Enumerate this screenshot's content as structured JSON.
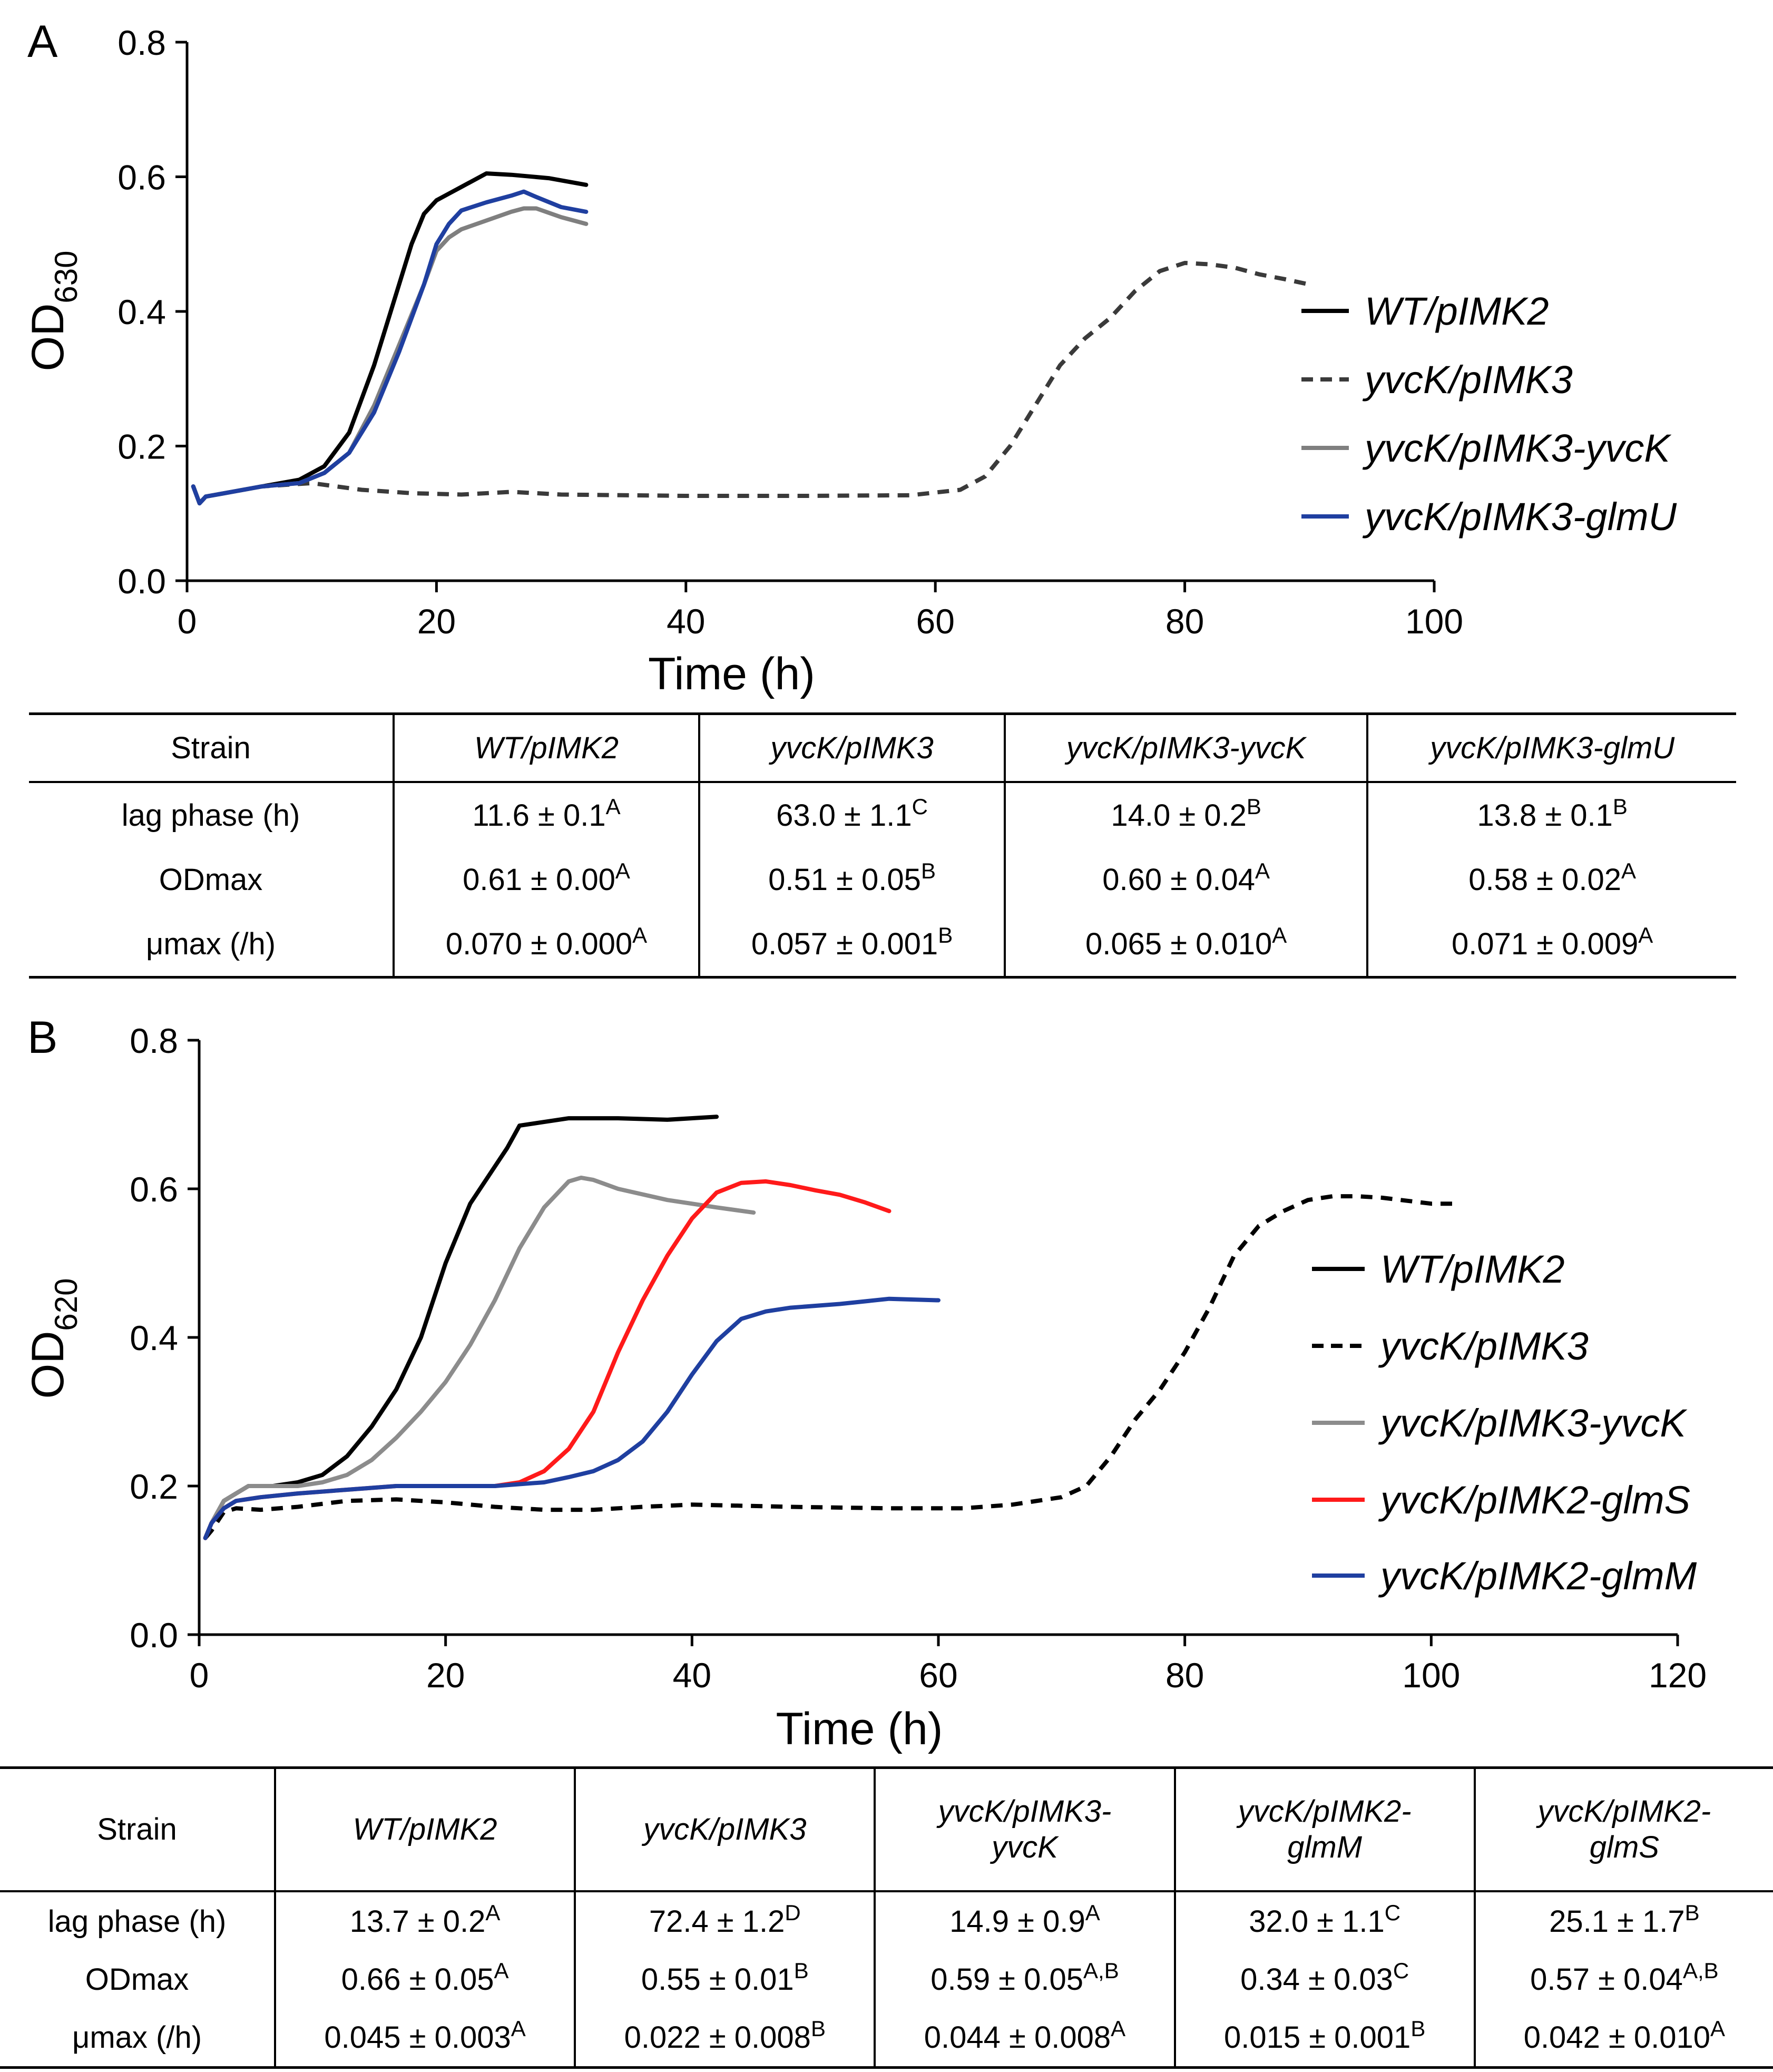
{
  "chart_data": [
    {
      "panel": "A",
      "type": "line",
      "title": "",
      "xlabel": "Time (h)",
      "ylabel_main": "OD",
      "ylabel_sub": "630",
      "xlim": [
        0,
        100
      ],
      "ylim": [
        0,
        0.8
      ],
      "xticks": [
        0,
        20,
        40,
        60,
        80,
        100
      ],
      "yticks": [
        0.0,
        0.2,
        0.4,
        0.6,
        0.8
      ],
      "xtick_labels": [
        "0",
        "20",
        "40",
        "60",
        "80",
        "100"
      ],
      "ytick_labels": [
        "0.0",
        "0.2",
        "0.4",
        "0.6",
        "0.8"
      ],
      "legend_position": "right",
      "series": [
        {
          "name": "WT/pIMK2",
          "color": "#000000",
          "dash": false,
          "x": [
            0.5,
            1,
            1.5,
            3,
            6,
            9,
            11,
            13,
            15,
            17,
            18,
            19,
            20,
            21,
            22,
            24,
            26,
            29,
            32
          ],
          "y": [
            0.14,
            0.115,
            0.125,
            0.13,
            0.14,
            0.15,
            0.17,
            0.22,
            0.32,
            0.44,
            0.5,
            0.545,
            0.565,
            0.575,
            0.585,
            0.605,
            0.603,
            0.598,
            0.588
          ]
        },
        {
          "name": "yvcK/pIMK3",
          "color": "#3a3a3a",
          "dash": true,
          "x": [
            0.5,
            1,
            1.5,
            3,
            6,
            10,
            14,
            18,
            22,
            26,
            30,
            40,
            50,
            58,
            62,
            64,
            66,
            68,
            70,
            72,
            74,
            76,
            78,
            80,
            82,
            84,
            86,
            88,
            90
          ],
          "y": [
            0.14,
            0.115,
            0.125,
            0.13,
            0.14,
            0.145,
            0.135,
            0.13,
            0.128,
            0.132,
            0.128,
            0.126,
            0.126,
            0.127,
            0.135,
            0.155,
            0.2,
            0.26,
            0.32,
            0.36,
            0.39,
            0.43,
            0.46,
            0.472,
            0.47,
            0.465,
            0.455,
            0.448,
            0.44
          ]
        },
        {
          "name": "yvcK/pIMK3-yvcK",
          "color": "#7f7f7f",
          "dash": false,
          "x": [
            0.5,
            1,
            1.5,
            3,
            6,
            9,
            11,
            13,
            15,
            17,
            19,
            20,
            21,
            22,
            24,
            26,
            27,
            28,
            30,
            32
          ],
          "y": [
            0.14,
            0.115,
            0.125,
            0.13,
            0.14,
            0.145,
            0.16,
            0.19,
            0.26,
            0.35,
            0.44,
            0.49,
            0.51,
            0.522,
            0.535,
            0.548,
            0.553,
            0.553,
            0.54,
            0.53
          ]
        },
        {
          "name": "yvcK/pIMK3-glmU",
          "color": "#1f3fa0",
          "dash": false,
          "x": [
            0.5,
            1,
            1.5,
            3,
            6,
            9,
            11,
            13,
            15,
            17,
            19,
            20,
            21,
            22,
            24,
            26,
            27,
            28,
            30,
            32
          ],
          "y": [
            0.14,
            0.115,
            0.125,
            0.13,
            0.14,
            0.145,
            0.16,
            0.19,
            0.25,
            0.34,
            0.44,
            0.5,
            0.53,
            0.55,
            0.562,
            0.572,
            0.578,
            0.57,
            0.555,
            0.548
          ]
        }
      ]
    },
    {
      "panel": "B",
      "type": "line",
      "title": "",
      "xlabel": "Time (h)",
      "ylabel_main": "OD",
      "ylabel_sub": "620",
      "xlim": [
        0,
        120
      ],
      "ylim": [
        0,
        0.8
      ],
      "xticks": [
        0,
        20,
        40,
        60,
        80,
        100,
        120
      ],
      "yticks": [
        0.0,
        0.2,
        0.4,
        0.6,
        0.8
      ],
      "xtick_labels": [
        "0",
        "20",
        "40",
        "60",
        "80",
        "100",
        "120"
      ],
      "ytick_labels": [
        "0.0",
        "0.2",
        "0.4",
        "0.6",
        "0.8"
      ],
      "legend_position": "right",
      "series": [
        {
          "name": "WT/pIMK2",
          "color": "#000000",
          "dash": false,
          "x": [
            0.5,
            1,
            2,
            3,
            4,
            6,
            8,
            10,
            12,
            14,
            16,
            18,
            20,
            22,
            24,
            25,
            26,
            28,
            30,
            34,
            38,
            42
          ],
          "y": [
            0.13,
            0.15,
            0.18,
            0.19,
            0.2,
            0.2,
            0.205,
            0.215,
            0.24,
            0.28,
            0.33,
            0.4,
            0.5,
            0.58,
            0.63,
            0.655,
            0.685,
            0.69,
            0.695,
            0.695,
            0.693,
            0.697
          ]
        },
        {
          "name": "yvcK/pIMK3",
          "color": "#000000",
          "dash": true,
          "x": [
            0.5,
            1,
            2,
            3,
            5,
            8,
            12,
            16,
            20,
            24,
            28,
            32,
            36,
            40,
            48,
            56,
            62,
            66,
            70,
            72,
            74,
            76,
            78,
            80,
            82,
            84,
            86,
            88,
            90,
            92,
            94,
            96,
            100,
            102
          ],
          "y": [
            0.13,
            0.14,
            0.165,
            0.17,
            0.168,
            0.172,
            0.18,
            0.182,
            0.178,
            0.172,
            0.168,
            0.168,
            0.172,
            0.175,
            0.172,
            0.17,
            0.17,
            0.175,
            0.185,
            0.2,
            0.24,
            0.29,
            0.33,
            0.38,
            0.44,
            0.51,
            0.55,
            0.57,
            0.585,
            0.59,
            0.59,
            0.588,
            0.58,
            0.58
          ]
        },
        {
          "name": "yvcK/pIMK3-yvcK",
          "color": "#8c8c8c",
          "dash": false,
          "x": [
            0.5,
            1,
            2,
            3,
            4,
            6,
            8,
            10,
            12,
            14,
            16,
            18,
            20,
            22,
            24,
            26,
            28,
            30,
            31,
            32,
            34,
            38,
            42,
            45
          ],
          "y": [
            0.13,
            0.15,
            0.18,
            0.19,
            0.2,
            0.2,
            0.2,
            0.205,
            0.215,
            0.235,
            0.265,
            0.3,
            0.34,
            0.39,
            0.45,
            0.52,
            0.575,
            0.61,
            0.615,
            0.612,
            0.6,
            0.585,
            0.575,
            0.568
          ]
        },
        {
          "name": "yvcK/pIMK2-glmS",
          "color": "#ff1a1a",
          "dash": false,
          "x": [
            0.5,
            1,
            2,
            3,
            5,
            8,
            12,
            16,
            20,
            24,
            26,
            28,
            30,
            32,
            34,
            36,
            38,
            40,
            42,
            44,
            46,
            48,
            50,
            52,
            54,
            56
          ],
          "y": [
            0.13,
            0.15,
            0.17,
            0.18,
            0.185,
            0.19,
            0.195,
            0.2,
            0.2,
            0.2,
            0.205,
            0.22,
            0.25,
            0.3,
            0.38,
            0.45,
            0.51,
            0.56,
            0.595,
            0.608,
            0.61,
            0.605,
            0.598,
            0.592,
            0.582,
            0.57
          ]
        },
        {
          "name": "yvcK/pIMK2-glmM",
          "color": "#1f3fa0",
          "dash": false,
          "x": [
            0.5,
            1,
            2,
            3,
            5,
            8,
            12,
            16,
            20,
            24,
            28,
            30,
            32,
            34,
            36,
            38,
            40,
            42,
            44,
            46,
            48,
            52,
            56,
            60
          ],
          "y": [
            0.13,
            0.15,
            0.17,
            0.18,
            0.185,
            0.19,
            0.195,
            0.2,
            0.2,
            0.2,
            0.205,
            0.212,
            0.22,
            0.235,
            0.26,
            0.3,
            0.35,
            0.395,
            0.425,
            0.435,
            0.44,
            0.445,
            0.452,
            0.45
          ]
        }
      ]
    }
  ],
  "tableA": {
    "headers": [
      "Strain",
      "WT/pIMK2",
      "yvcK/pIMK3",
      "yvcK/pIMK3-yvcK",
      "yvcK/pIMK3-glmU"
    ],
    "rows": [
      {
        "label": "lag phase (h)",
        "cells": [
          [
            "11.6 ± 0.1",
            "A"
          ],
          [
            "63.0 ± 1.1",
            "C"
          ],
          [
            "14.0 ± 0.2",
            "B"
          ],
          [
            "13.8 ± 0.1",
            "B"
          ]
        ]
      },
      {
        "label": "ODmax",
        "cells": [
          [
            "0.61 ± 0.00",
            "A"
          ],
          [
            "0.51 ± 0.05",
            "B"
          ],
          [
            "0.60 ± 0.04",
            "A"
          ],
          [
            "0.58 ± 0.02",
            "A"
          ]
        ]
      },
      {
        "label": "μmax (/h)",
        "cells": [
          [
            "0.070 ± 0.000",
            "A"
          ],
          [
            "0.057 ± 0.001",
            "B"
          ],
          [
            "0.065 ± 0.010",
            "A"
          ],
          [
            "0.071 ± 0.009",
            "A"
          ]
        ]
      }
    ]
  },
  "tableB": {
    "headers": [
      "Strain",
      "WT/pIMK2",
      "yvcK/pIMK3",
      "yvcK/pIMK3-\nyvcK",
      "yvcK/pIMK2-\nglmM",
      "yvcK/pIMK2-\nglmS"
    ],
    "rows": [
      {
        "label": "lag phase (h)",
        "cells": [
          [
            "13.7 ± 0.2",
            "A"
          ],
          [
            "72.4 ± 1.2",
            "D"
          ],
          [
            "14.9 ± 0.9",
            "A"
          ],
          [
            "32.0 ± 1.1",
            "C"
          ],
          [
            "25.1 ± 1.7",
            "B"
          ]
        ]
      },
      {
        "label": "ODmax",
        "cells": [
          [
            "0.66 ± 0.05",
            "A"
          ],
          [
            "0.55 ± 0.01",
            "B"
          ],
          [
            "0.59 ± 0.05",
            "A,B"
          ],
          [
            "0.34 ± 0.03",
            "C"
          ],
          [
            "0.57 ± 0.04",
            "A,B"
          ]
        ]
      },
      {
        "label": "μmax (/h)",
        "cells": [
          [
            "0.045 ± 0.003",
            "A"
          ],
          [
            "0.022 ± 0.008",
            "B"
          ],
          [
            "0.044 ± 0.008",
            "A"
          ],
          [
            "0.015 ± 0.001",
            "B"
          ],
          [
            "0.042 ± 0.010",
            "A"
          ]
        ]
      }
    ]
  },
  "panel_labels": {
    "a": "A",
    "b": "B"
  }
}
